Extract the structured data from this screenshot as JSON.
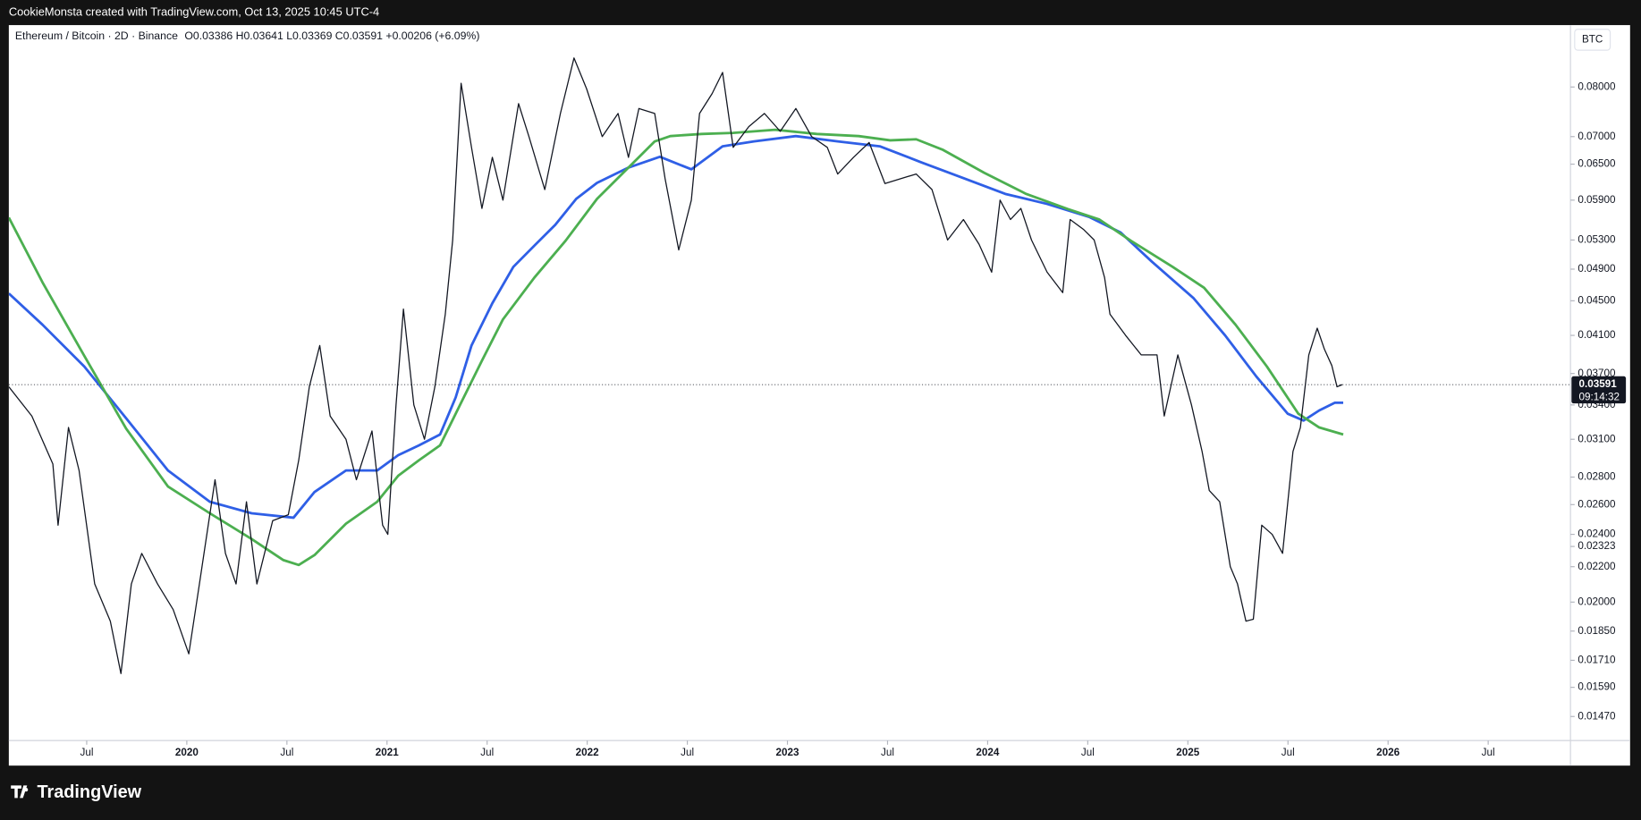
{
  "header": {
    "caption": "CookieMonsta created with TradingView.com, Oct 13, 2025 10:45 UTC-4",
    "brand": "TradingView"
  },
  "chart_data": {
    "type": "line",
    "title": "Ethereum / Bitcoin · 2D · Binance",
    "ohlc_legend": "O0.03386 H0.03641 L0.03369 C0.03591 +0.00206 (+6.09%)",
    "currency": "BTC",
    "countdown": "09:14:32",
    "log_scale": true,
    "grid": false,
    "xlim": [
      2019.111,
      2026.911
    ],
    "ylim": [
      0.01378,
      0.0945
    ],
    "xticks": [
      {
        "value": 2019.5,
        "label": "Jul"
      },
      2020,
      {
        "value": 2020.5,
        "label": "Jul"
      },
      2021,
      {
        "value": 2021.5,
        "label": "Jul"
      },
      2022,
      {
        "value": 2022.5,
        "label": "Jul"
      },
      2023,
      {
        "value": 2023.5,
        "label": "Jul"
      },
      2024,
      {
        "value": 2024.5,
        "label": "Jul"
      },
      2025,
      {
        "value": 2025.5,
        "label": "Jul"
      },
      2026,
      {
        "value": 2026.5,
        "label": "Jul"
      }
    ],
    "yticks": [
      {
        "value": 0.08,
        "label": "0.08000"
      },
      {
        "value": 0.07,
        "label": "0.07000"
      },
      {
        "value": 0.065,
        "label": "0.06500"
      },
      {
        "value": 0.059,
        "label": "0.05900"
      },
      {
        "value": 0.053,
        "label": "0.05300"
      },
      {
        "value": 0.049,
        "label": "0.04900"
      },
      {
        "value": 0.045,
        "label": "0.04500"
      },
      {
        "value": 0.041,
        "label": "0.04100"
      },
      {
        "value": 0.037,
        "label": "0.03700"
      },
      {
        "value": 0.034,
        "label": "0.03400"
      },
      {
        "value": 0.031,
        "label": "0.03100"
      },
      {
        "value": 0.028,
        "label": "0.02800"
      },
      {
        "value": 0.026,
        "label": "0.02600"
      },
      {
        "value": 0.024,
        "label": "0.02400"
      },
      0.02323,
      {
        "value": 0.022,
        "label": "0.02200"
      },
      {
        "value": 0.02,
        "label": "0.02000"
      },
      {
        "value": 0.0185,
        "label": "0.01850"
      },
      {
        "value": 0.0171,
        "label": "0.01710"
      },
      {
        "value": 0.0159,
        "label": "0.01590"
      },
      {
        "value": 0.0147,
        "label": "0.01470"
      }
    ],
    "series": [
      {
        "color": "#131722",
        "x": [
          2019.111,
          2019.226,
          2019.331,
          2019.357,
          2019.409,
          2019.462,
          2019.54,
          2019.618,
          2019.671,
          2019.723,
          2019.775,
          2019.854,
          2019.932,
          2020.01,
          2020.063,
          2020.141,
          2020.193,
          2020.246,
          2020.298,
          2020.35,
          2020.429,
          2020.507,
          2020.559,
          2020.612,
          2020.664,
          2020.716,
          2020.795,
          2020.847,
          2020.925,
          2020.978,
          2021.004,
          2021.045,
          2021.082,
          2021.134,
          2021.187,
          2021.239,
          2021.291,
          2021.328,
          2021.37,
          2021.422,
          2021.474,
          2021.526,
          2021.579,
          2021.657,
          2021.709,
          2021.788,
          2021.866,
          2021.934,
          2021.997,
          2022.075,
          2022.154,
          2022.206,
          2022.258,
          2022.337,
          2022.389,
          2022.457,
          2022.52,
          2022.561,
          2022.624,
          2022.676,
          2022.729,
          2022.807,
          2022.885,
          2022.964,
          2023.042,
          2023.121,
          2023.199,
          2023.251,
          2023.33,
          2023.408,
          2023.487,
          2023.565,
          2023.643,
          2023.722,
          2023.8,
          2023.879,
          2023.957,
          2024.02,
          2024.062,
          2024.114,
          2024.166,
          2024.219,
          2024.297,
          2024.375,
          2024.412,
          2024.48,
          2024.532,
          2024.584,
          2024.611,
          2024.689,
          2024.767,
          2024.846,
          2024.882,
          2024.95,
          2025.018,
          2025.071,
          2025.107,
          2025.159,
          2025.212,
          2025.248,
          2025.29,
          2025.327,
          2025.369,
          2025.421,
          2025.473,
          2025.525,
          2025.562,
          2025.604,
          2025.646,
          2025.682,
          2025.719,
          2025.745,
          2025.771
        ],
        "values": [
          0.0357,
          0.033,
          0.029,
          0.0246,
          0.032,
          0.0285,
          0.021,
          0.019,
          0.0165,
          0.021,
          0.0228,
          0.021,
          0.0196,
          0.0174,
          0.021,
          0.0278,
          0.0228,
          0.021,
          0.0262,
          0.021,
          0.0249,
          0.0253,
          0.0293,
          0.0357,
          0.0399,
          0.033,
          0.031,
          0.0278,
          0.0317,
          0.0246,
          0.024,
          0.034,
          0.044,
          0.034,
          0.031,
          0.0357,
          0.0434,
          0.053,
          0.0808,
          0.068,
          0.0577,
          0.0662,
          0.059,
          0.0765,
          0.07,
          0.0607,
          0.0745,
          0.0865,
          0.0796,
          0.07,
          0.0745,
          0.0662,
          0.0755,
          0.0745,
          0.0625,
          0.0516,
          0.059,
          0.0745,
          0.0786,
          0.0832,
          0.068,
          0.0719,
          0.0745,
          0.071,
          0.0755,
          0.07,
          0.068,
          0.0633,
          0.0662,
          0.0689,
          0.0617,
          0.0625,
          0.0633,
          0.0607,
          0.053,
          0.056,
          0.0524,
          0.0486,
          0.059,
          0.056,
          0.0577,
          0.053,
          0.0486,
          0.046,
          0.056,
          0.0545,
          0.053,
          0.0479,
          0.0434,
          0.041,
          0.0389,
          0.0389,
          0.033,
          0.0389,
          0.034,
          0.03,
          0.027,
          0.0262,
          0.022,
          0.021,
          0.019,
          0.0191,
          0.0246,
          0.024,
          0.0228,
          0.03,
          0.032,
          0.0389,
          0.0418,
          0.0395,
          0.0378,
          0.0357,
          0.03591
        ]
      },
      {
        "color": "#2f5fe6",
        "x": [
          2019.111,
          2019.279,
          2019.488,
          2019.697,
          2019.906,
          2020.115,
          2020.324,
          2020.533,
          2020.638,
          2020.795,
          2020.951,
          2021.056,
          2021.16,
          2021.265,
          2021.343,
          2021.422,
          2021.526,
          2021.631,
          2021.736,
          2021.84,
          2021.945,
          2022.049,
          2022.206,
          2022.363,
          2022.52,
          2022.676,
          2022.833,
          2023.042,
          2023.251,
          2023.461,
          2023.67,
          2023.879,
          2024.088,
          2024.297,
          2024.506,
          2024.663,
          2024.82,
          2025.029,
          2025.186,
          2025.342,
          2025.499,
          2025.578,
          2025.656,
          2025.734,
          2025.776
        ],
        "values": [
          0.0459,
          0.0422,
          0.0377,
          0.0328,
          0.0285,
          0.0262,
          0.0254,
          0.0251,
          0.0269,
          0.0285,
          0.0285,
          0.0297,
          0.0305,
          0.0314,
          0.0347,
          0.0399,
          0.0447,
          0.0493,
          0.0522,
          0.0552,
          0.0592,
          0.0618,
          0.0644,
          0.0663,
          0.0641,
          0.0682,
          0.0691,
          0.0701,
          0.0691,
          0.0682,
          0.0653,
          0.0626,
          0.06,
          0.0584,
          0.0564,
          0.0541,
          0.05,
          0.0453,
          0.041,
          0.0367,
          0.0332,
          0.0326,
          0.0335,
          0.0342,
          0.0342
        ]
      },
      {
        "color": "#4caf50",
        "x": [
          2019.111,
          2019.279,
          2019.488,
          2019.697,
          2019.906,
          2020.115,
          2020.324,
          2020.481,
          2020.559,
          2020.638,
          2020.795,
          2020.951,
          2021.056,
          2021.16,
          2021.265,
          2021.37,
          2021.474,
          2021.579,
          2021.736,
          2021.892,
          2022.049,
          2022.206,
          2022.337,
          2022.415,
          2022.572,
          2022.729,
          2022.938,
          2023.147,
          2023.356,
          2023.513,
          2023.643,
          2023.774,
          2023.983,
          2024.192,
          2024.401,
          2024.558,
          2024.715,
          2024.924,
          2025.081,
          2025.238,
          2025.395,
          2025.552,
          2025.656,
          2025.776
        ],
        "values": [
          0.0563,
          0.0473,
          0.0388,
          0.0319,
          0.0273,
          0.0254,
          0.0237,
          0.0224,
          0.0221,
          0.0227,
          0.0247,
          0.0262,
          0.0281,
          0.0293,
          0.0305,
          0.0342,
          0.0383,
          0.0428,
          0.0479,
          0.0529,
          0.0592,
          0.0644,
          0.0691,
          0.0701,
          0.0705,
          0.0707,
          0.0713,
          0.0705,
          0.0701,
          0.0693,
          0.0695,
          0.0676,
          0.0635,
          0.06,
          0.0576,
          0.056,
          0.0529,
          0.0493,
          0.0466,
          0.0422,
          0.0377,
          0.0332,
          0.032,
          0.0314
        ]
      }
    ]
  }
}
